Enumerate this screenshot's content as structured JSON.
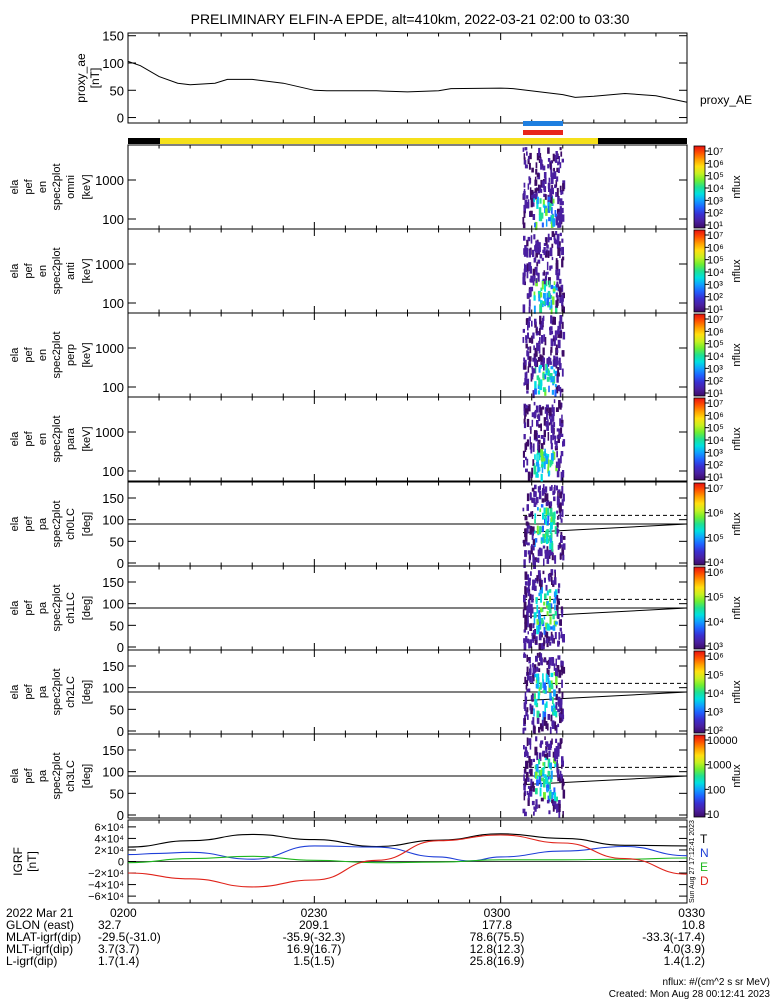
{
  "title": "PRELIMINARY ELFIN-A EPDE, alt=410km, 2022-03-21 02:00 to 03:30",
  "colors": {
    "spin_blue": "#1e7fe0",
    "spin_red": "#e8261a",
    "sunlit_yellow": "#f5e01a",
    "eclipse_black": "#000000",
    "grf_T": "#000000",
    "grf_N": "#1f3fd8",
    "grf_E": "#1fb81f",
    "grf_D": "#e0231a"
  },
  "colorbar_stops": [
    "#3c0b66",
    "#4a1fa0",
    "#3a2fd0",
    "#2060ff",
    "#10a0ff",
    "#00e0e0",
    "#20e090",
    "#70ee30",
    "#c8f020",
    "#ffe010",
    "#ffa000",
    "#ff5000",
    "#e81010"
  ],
  "chart_data": [
    {
      "type": "line",
      "id": "proxy_ae",
      "ylabel": "proxy_ae [nT]",
      "legend": "proxy_AE",
      "yticks": [
        "150",
        "100",
        "50",
        "0"
      ],
      "ylim": [
        -10,
        155
      ],
      "x_minutes": [
        0,
        2,
        5,
        8,
        10,
        14,
        16,
        20,
        25,
        30,
        32,
        40,
        45,
        50,
        52,
        60,
        62,
        70,
        72,
        75,
        80,
        85,
        90
      ],
      "values": [
        103,
        95,
        75,
        63,
        60,
        63,
        70,
        70,
        63,
        50,
        49,
        49,
        47,
        49,
        53,
        54,
        53,
        42,
        37,
        39,
        44,
        40,
        28
      ]
    },
    {
      "type": "heatmap",
      "id": "omni",
      "ylabel_lines": [
        "ela",
        "pef",
        "en",
        "spec2plot",
        "omni",
        "[keV]"
      ],
      "yticks": [
        "1000",
        "100"
      ],
      "cbar_ticks": [
        "10⁷",
        "10⁶",
        "10⁵",
        "10⁴",
        "10³",
        "10²",
        "10¹"
      ],
      "cbar_label": "nflux"
    },
    {
      "type": "heatmap",
      "id": "anti",
      "ylabel_lines": [
        "ela",
        "pef",
        "en",
        "spec2plot",
        "anti",
        "[keV]"
      ],
      "yticks": [
        "1000",
        "100"
      ],
      "cbar_ticks": [
        "10⁷",
        "10⁶",
        "10⁵",
        "10⁴",
        "10³",
        "10²",
        "10¹"
      ],
      "cbar_label": "nflux"
    },
    {
      "type": "heatmap",
      "id": "perp",
      "ylabel_lines": [
        "ela",
        "pef",
        "en",
        "spec2plot",
        "perp",
        "[keV]"
      ],
      "yticks": [
        "1000",
        "100"
      ],
      "cbar_ticks": [
        "10⁷",
        "10⁶",
        "10⁵",
        "10⁴",
        "10³",
        "10²",
        "10¹"
      ],
      "cbar_label": "nflux"
    },
    {
      "type": "heatmap",
      "id": "para",
      "ylabel_lines": [
        "ela",
        "pef",
        "en",
        "spec2plot",
        "para",
        "[keV]"
      ],
      "yticks": [
        "1000",
        "100"
      ],
      "cbar_ticks": [
        "10⁷",
        "10⁶",
        "10⁵",
        "10⁴",
        "10³",
        "10²",
        "10¹"
      ],
      "cbar_label": "nflux"
    },
    {
      "type": "heatmap",
      "id": "ch0LC",
      "ylabel_lines": [
        "ela",
        "pef",
        "pa",
        "spec2plot",
        "ch0LC",
        "[deg]"
      ],
      "yticks": [
        "150",
        "100",
        "50",
        "0"
      ],
      "cbar_ticks": [
        "10⁷",
        "10⁶",
        "10⁵",
        "10⁴"
      ],
      "cbar_label": "nflux"
    },
    {
      "type": "heatmap",
      "id": "ch1LC",
      "ylabel_lines": [
        "ela",
        "pef",
        "pa",
        "spec2plot",
        "ch1LC",
        "[deg]"
      ],
      "yticks": [
        "150",
        "100",
        "50",
        "0"
      ],
      "cbar_ticks": [
        "10⁶",
        "10⁵",
        "10⁴",
        "10³"
      ],
      "cbar_label": "nflux"
    },
    {
      "type": "heatmap",
      "id": "ch2LC",
      "ylabel_lines": [
        "ela",
        "pef",
        "pa",
        "spec2plot",
        "ch2LC",
        "[deg]"
      ],
      "yticks": [
        "150",
        "100",
        "50",
        "0"
      ],
      "cbar_ticks": [
        "10⁶",
        "10⁵",
        "10⁴",
        "10³",
        "10²"
      ],
      "cbar_label": "nflux"
    },
    {
      "type": "heatmap",
      "id": "ch3LC",
      "ylabel_lines": [
        "ela",
        "pef",
        "pa",
        "spec2plot",
        "ch3LC",
        "[deg]"
      ],
      "yticks": [
        "150",
        "100",
        "50",
        "0"
      ],
      "cbar_ticks": [
        "10000",
        "1000",
        "100",
        "10"
      ],
      "cbar_label": "nflux"
    },
    {
      "type": "line",
      "id": "grf",
      "ylabel": "IGRF [nT]",
      "yticks": [
        "6×10⁴",
        "4×10⁴",
        "2×10⁴",
        "0",
        "−2×10⁴",
        "−4×10⁴",
        "−6×10⁴"
      ],
      "ylim": [
        -65000,
        65000
      ],
      "series": [
        {
          "name": "T",
          "x_minutes": [
            0,
            10,
            20,
            30,
            40,
            50,
            60,
            70,
            80,
            90
          ],
          "values": [
            25000,
            36000,
            47000,
            38000,
            26000,
            37000,
            48000,
            40000,
            28000,
            27000
          ]
        },
        {
          "name": "N",
          "x_minutes": [
            0,
            5,
            10,
            20,
            30,
            40,
            50,
            55,
            60,
            70,
            80,
            90
          ],
          "values": [
            12000,
            14000,
            16000,
            4000,
            27000,
            25000,
            8000,
            1000,
            8000,
            18000,
            26000,
            10000
          ]
        },
        {
          "name": "E",
          "x_minutes": [
            0,
            10,
            20,
            30,
            40,
            50,
            60,
            70,
            80,
            90
          ],
          "values": [
            -2000,
            5000,
            9000,
            2000,
            -2000,
            -1000,
            3000,
            3000,
            4000,
            6000
          ]
        },
        {
          "name": "D",
          "x_minutes": [
            0,
            10,
            20,
            30,
            40,
            50,
            60,
            70,
            80,
            90
          ],
          "values": [
            -20000,
            -30000,
            -44000,
            -32000,
            2000,
            36000,
            46000,
            32000,
            5000,
            -22000
          ]
        }
      ]
    }
  ],
  "sidebar_stamp": "Sun Aug 27 17:12:41 2023",
  "footer": {
    "row_labels": [
      "2022 Mar 21",
      "GLON (east)",
      "MLAT-igrf(dip)",
      "MLT-igrf(dip)",
      "L-igrf(dip)"
    ],
    "col_headers": [
      "0200",
      "0230",
      "0300",
      "0330"
    ],
    "columns": [
      [
        "32.7",
        "-29.5(-31.0)",
        "3.7(3.7)",
        "1.7(1.4)"
      ],
      [
        "209.1",
        "-35.9(-32.3)",
        "16.9(16.7)",
        "1.5(1.5)"
      ],
      [
        "177.8",
        "78.6(75.5)",
        "12.8(12.3)",
        "25.8(16.9)"
      ],
      [
        "10.8",
        "-33.3(-17.4)",
        "4.0(3.9)",
        "1.4(1.2)"
      ]
    ],
    "units_note": "nflux: #/(cm^2 s sr MeV)",
    "created": "Created: Mon Aug 28 00:12:41 2023"
  }
}
